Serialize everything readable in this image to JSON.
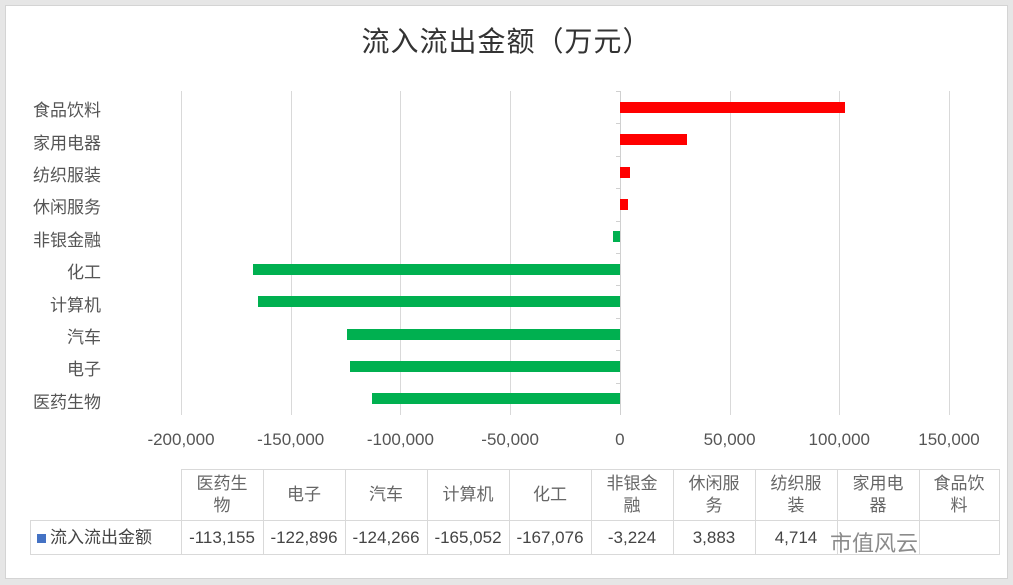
{
  "chart_data": {
    "type": "bar",
    "orientation": "horizontal",
    "title": "流入流出金额（万元）",
    "xlabel": "",
    "ylabel": "",
    "xlim": [
      -200000,
      150000
    ],
    "x_ticks": [
      "-200,000",
      "-150,000",
      "-100,000",
      "-50,000",
      "0",
      "50,000",
      "100,000",
      "150,000"
    ],
    "grid": true,
    "categories": [
      "医药生物",
      "电子",
      "汽车",
      "计算机",
      "化工",
      "非银金融",
      "休闲服务",
      "纺织服装",
      "家用电器",
      "食品饮料"
    ],
    "series": [
      {
        "name": "流入流出金额",
        "values": [
          -113155,
          -122896,
          -124266,
          -165052,
          -167076,
          -3224,
          3883,
          4714,
          30500,
          102700
        ],
        "colors": {
          "positive": "#ff0000",
          "negative": "#00b050"
        }
      }
    ],
    "data_table": {
      "headers": [
        "医药生物",
        "电子",
        "汽车",
        "计算机",
        "化工",
        "非银金融",
        "休闲服务",
        "纺织服装",
        "家用电器",
        "食品饮料"
      ],
      "header_lines": [
        [
          "医药生",
          "物"
        ],
        [
          "电子"
        ],
        [
          "汽车"
        ],
        [
          "计算机"
        ],
        [
          "化工"
        ],
        [
          "非银金",
          "融"
        ],
        [
          "休闲服",
          "务"
        ],
        [
          "纺织服",
          "装"
        ],
        [
          "家用电",
          "器"
        ],
        [
          "食品饮",
          "料"
        ]
      ],
      "row_label": "流入流出金额",
      "row_values": [
        "-113,155",
        "-122,896",
        "-124,266",
        "-165,052",
        "-167,076",
        "-3,224",
        "3,883",
        "4,714",
        "",
        ""
      ]
    },
    "legend": {
      "position": "data-table",
      "key_color": "#4472c4"
    }
  },
  "watermark": "市值风云"
}
